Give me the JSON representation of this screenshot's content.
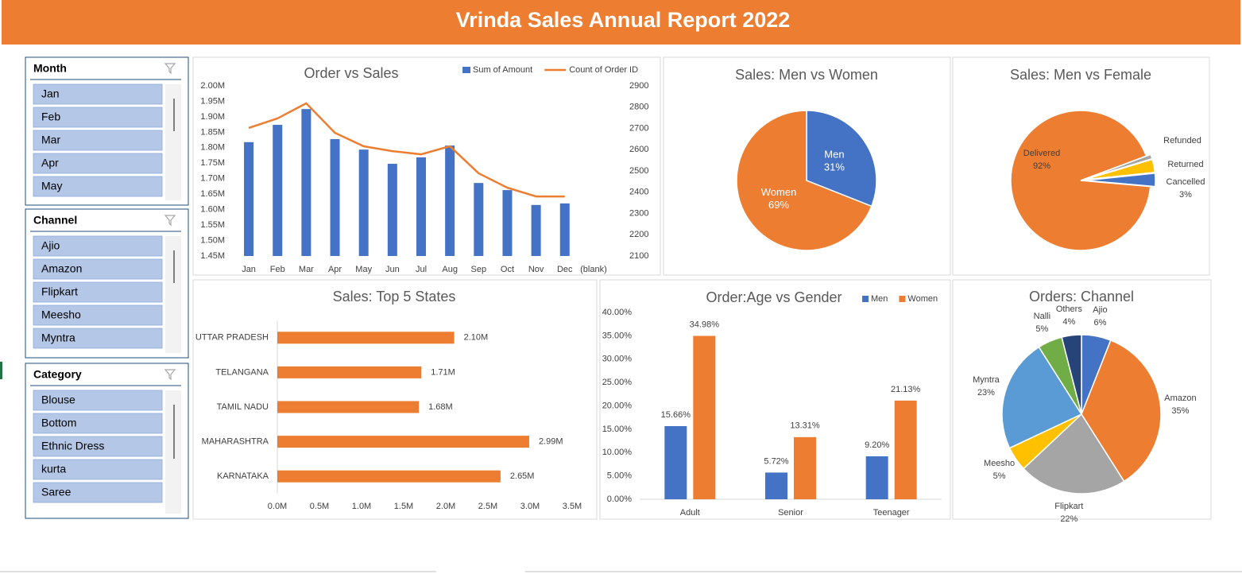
{
  "header": {
    "title": "Vrinda Sales Annual Report 2022"
  },
  "slicers": [
    {
      "title": "Month",
      "items": [
        "Jan",
        "Feb",
        "Mar",
        "Apr",
        "May"
      ]
    },
    {
      "title": "Channel",
      "items": [
        "Ajio",
        "Amazon",
        "Flipkart",
        "Meesho",
        "Myntra"
      ]
    },
    {
      "title": "Category",
      "items": [
        "Blouse",
        "Bottom",
        "Ethnic Dress",
        "kurta",
        "Saree"
      ]
    }
  ],
  "chart_data": [
    {
      "type": "combo",
      "title": "Order vs Sales",
      "categories": [
        "Jan",
        "Feb",
        "Mar",
        "Apr",
        "May",
        "Jun",
        "Jul",
        "Aug",
        "Sep",
        "Oct",
        "Nov",
        "Dec",
        "(blank)"
      ],
      "series": [
        {
          "name": "Sum of Amount",
          "type": "bar",
          "color": "#4472c4",
          "values": [
            1818000,
            1874000,
            1925000,
            1828000,
            1794000,
            1748000,
            1769000,
            1807000,
            1686000,
            1663000,
            1615000,
            1620000,
            null
          ]
        },
        {
          "name": "Count of Order ID",
          "type": "line",
          "axis": "y2",
          "color": "#ed7d31",
          "values": [
            2702,
            2747,
            2818,
            2679,
            2616,
            2593,
            2578,
            2616,
            2489,
            2421,
            2380,
            2380,
            null
          ]
        }
      ],
      "ylim": [
        1450000,
        2000000
      ],
      "yticks": [
        {
          "value": 1450000,
          "label": "1.45M"
        },
        {
          "value": 1500000,
          "label": "1.50M"
        },
        {
          "value": 1550000,
          "label": "1.55M"
        },
        {
          "value": 1600000,
          "label": "1.60M"
        },
        {
          "value": 1650000,
          "label": "1.65M"
        },
        {
          "value": 1700000,
          "label": "1.70M"
        },
        {
          "value": 1750000,
          "label": "1.75M"
        },
        {
          "value": 1800000,
          "label": "1.80M"
        },
        {
          "value": 1850000,
          "label": "1.85M"
        },
        {
          "value": 1900000,
          "label": "1.90M"
        },
        {
          "value": 1950000,
          "label": "1.95M"
        },
        {
          "value": 2000000,
          "label": "2.00M"
        }
      ],
      "y2lim": [
        2100,
        2900
      ],
      "y2ticks": [
        2100,
        2200,
        2300,
        2400,
        2500,
        2600,
        2700,
        2800,
        2900
      ],
      "legend": "top-right"
    },
    {
      "type": "pie",
      "title": "Sales: Men vs Women",
      "categories": [
        "Men",
        "Women"
      ],
      "values": [
        31,
        69
      ],
      "value_labels": [
        "31%",
        "69%"
      ],
      "colors": [
        "#4472c4",
        "#ed7d31"
      ]
    },
    {
      "type": "pie",
      "title": "Sales: Men vs Female",
      "categories": [
        "Delivered",
        "Refunded",
        "Returned",
        "Cancelled"
      ],
      "values": [
        92,
        1,
        3,
        3
      ],
      "value_labels": [
        "92%",
        null,
        null,
        "3%"
      ],
      "colors": [
        "#ed7d31",
        "#a5a5a5",
        "#ffc000",
        "#4472c4"
      ]
    },
    {
      "type": "hbar",
      "title": "Sales: Top 5 States",
      "categories": [
        "UTTAR PRADESH",
        "TELANGANA",
        "TAMIL NADU",
        "MAHARASHTRA",
        "KARNATAKA"
      ],
      "values": [
        2100000,
        1710000,
        1680000,
        2990000,
        2650000
      ],
      "value_labels": [
        "2.10M",
        "1.71M",
        "1.68M",
        "2.99M",
        "2.65M"
      ],
      "color": "#ed7d31",
      "xlim": [
        0,
        3500000
      ],
      "xticks": [
        {
          "value": 0,
          "label": "0.0M"
        },
        {
          "value": 500000,
          "label": "0.5M"
        },
        {
          "value": 1000000,
          "label": "1.0M"
        },
        {
          "value": 1500000,
          "label": "1.5M"
        },
        {
          "value": 2000000,
          "label": "2.0M"
        },
        {
          "value": 2500000,
          "label": "2.5M"
        },
        {
          "value": 3000000,
          "label": "3.0M"
        },
        {
          "value": 3500000,
          "label": "3.5M"
        }
      ]
    },
    {
      "type": "grouped_bar",
      "title": "Order:Age vs Gender",
      "categories": [
        "Adult",
        "Senior",
        "Teenager"
      ],
      "series": [
        {
          "name": "Men",
          "color": "#4472c4",
          "values": [
            15.66,
            5.72,
            9.2
          ],
          "value_labels": [
            "15.66%",
            "5.72%",
            "9.20%"
          ]
        },
        {
          "name": "Women",
          "color": "#ed7d31",
          "values": [
            34.98,
            13.31,
            21.13
          ],
          "value_labels": [
            "34.98%",
            "13.31%",
            "21.13%"
          ]
        }
      ],
      "ylim": [
        0,
        40
      ],
      "yticks": [
        {
          "value": 0,
          "label": "0.00%"
        },
        {
          "value": 5,
          "label": "5.00%"
        },
        {
          "value": 10,
          "label": "10.00%"
        },
        {
          "value": 15,
          "label": "15.00%"
        },
        {
          "value": 20,
          "label": "20.00%"
        },
        {
          "value": 25,
          "label": "25.00%"
        },
        {
          "value": 30,
          "label": "30.00%"
        },
        {
          "value": 35,
          "label": "35.00%"
        },
        {
          "value": 40,
          "label": "40.00%"
        }
      ],
      "legend": "top-right"
    },
    {
      "type": "pie",
      "title": "Orders: Channel",
      "categories": [
        "Ajio",
        "Amazon",
        "Flipkart",
        "Meesho",
        "Myntra",
        "Nalli",
        "Others"
      ],
      "values": [
        6,
        35,
        22,
        5,
        23,
        5,
        4
      ],
      "value_labels": [
        "6%",
        "35%",
        "22%",
        "5%",
        "23%",
        "5%",
        "4%"
      ],
      "colors": [
        "#4472c4",
        "#ed7d31",
        "#a5a5a5",
        "#ffc000",
        "#5b9bd5",
        "#70ad47",
        "#264478"
      ]
    }
  ]
}
